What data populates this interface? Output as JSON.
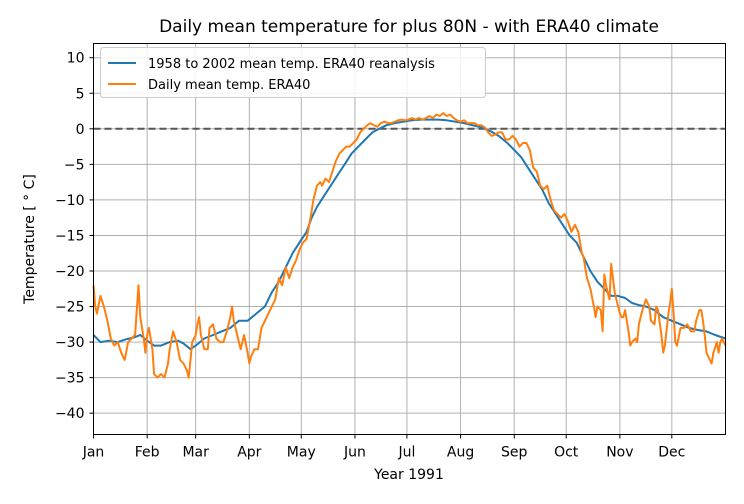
{
  "chart_data": {
    "type": "line",
    "title": "Daily mean temperature for plus 80N - with ERA40 climate",
    "xlabel": "Year 1991",
    "ylabel": "Temperature [$^\\circ$C]",
    "ylabel_display": "Temperature [ ° C]",
    "x_domain_days": [
      1,
      366
    ],
    "ylim": [
      -43,
      12
    ],
    "yticks": [
      10,
      5,
      0,
      -5,
      -10,
      -15,
      -20,
      -25,
      -30,
      -35,
      -40
    ],
    "xticks": [
      {
        "label": "Jan",
        "day": 1
      },
      {
        "label": "Feb",
        "day": 32
      },
      {
        "label": "Mar",
        "day": 60
      },
      {
        "label": "Apr",
        "day": 91
      },
      {
        "label": "May",
        "day": 121
      },
      {
        "label": "Jun",
        "day": 152
      },
      {
        "label": "Jul",
        "day": 182
      },
      {
        "label": "Aug",
        "day": 213
      },
      {
        "label": "Sep",
        "day": 244
      },
      {
        "label": "Oct",
        "day": 274
      },
      {
        "label": "Nov",
        "day": 305
      },
      {
        "label": "Dec",
        "day": 335
      }
    ],
    "grid": true,
    "legend_position": "upper-left",
    "reference_line": {
      "y": 0,
      "style": "dashed",
      "color": "#555555"
    },
    "series": [
      {
        "name": "1958 to 2002 mean temp. ERA40 reanalysis",
        "color": "#1f77b4",
        "points": [
          [
            1,
            -29.0
          ],
          [
            5,
            -30.0
          ],
          [
            10,
            -29.8
          ],
          [
            15,
            -30.0
          ],
          [
            20,
            -29.6
          ],
          [
            25,
            -29.3
          ],
          [
            28,
            -29.0
          ],
          [
            32,
            -29.8
          ],
          [
            36,
            -30.5
          ],
          [
            40,
            -30.5
          ],
          [
            45,
            -30.0
          ],
          [
            50,
            -29.8
          ],
          [
            53,
            -30.2
          ],
          [
            57,
            -31.0
          ],
          [
            60,
            -30.5
          ],
          [
            65,
            -29.5
          ],
          [
            70,
            -29.0
          ],
          [
            75,
            -28.5
          ],
          [
            80,
            -28.0
          ],
          [
            85,
            -27.0
          ],
          [
            90,
            -27.0
          ],
          [
            95,
            -26.0
          ],
          [
            100,
            -25.0
          ],
          [
            104,
            -23.0
          ],
          [
            108,
            -21.5
          ],
          [
            112,
            -19.5
          ],
          [
            116,
            -17.5
          ],
          [
            120,
            -16.0
          ],
          [
            124,
            -14.5
          ],
          [
            127,
            -12.5
          ],
          [
            130,
            -11.0
          ],
          [
            134,
            -9.5
          ],
          [
            138,
            -8.0
          ],
          [
            142,
            -6.5
          ],
          [
            146,
            -5.0
          ],
          [
            150,
            -3.5
          ],
          [
            154,
            -2.5
          ],
          [
            158,
            -1.5
          ],
          [
            162,
            -0.5
          ],
          [
            166,
            0.0
          ],
          [
            170,
            0.5
          ],
          [
            175,
            0.8
          ],
          [
            180,
            1.0
          ],
          [
            185,
            1.2
          ],
          [
            190,
            1.3
          ],
          [
            195,
            1.3
          ],
          [
            200,
            1.3
          ],
          [
            205,
            1.2
          ],
          [
            210,
            1.0
          ],
          [
            215,
            0.8
          ],
          [
            220,
            0.5
          ],
          [
            225,
            0.2
          ],
          [
            230,
            -0.3
          ],
          [
            235,
            -1.0
          ],
          [
            240,
            -2.0
          ],
          [
            244,
            -3.0
          ],
          [
            248,
            -4.0
          ],
          [
            252,
            -5.5
          ],
          [
            256,
            -7.0
          ],
          [
            260,
            -8.5
          ],
          [
            264,
            -10.5
          ],
          [
            268,
            -12.0
          ],
          [
            272,
            -13.5
          ],
          [
            276,
            -15.0
          ],
          [
            280,
            -16.0
          ],
          [
            284,
            -18.0
          ],
          [
            288,
            -20.0
          ],
          [
            292,
            -21.5
          ],
          [
            296,
            -22.5
          ],
          [
            300,
            -23.5
          ],
          [
            304,
            -23.5
          ],
          [
            308,
            -23.8
          ],
          [
            312,
            -24.5
          ],
          [
            316,
            -24.8
          ],
          [
            320,
            -25.0
          ],
          [
            325,
            -25.5
          ],
          [
            330,
            -26.5
          ],
          [
            335,
            -27.0
          ],
          [
            340,
            -27.5
          ],
          [
            345,
            -28.0
          ],
          [
            350,
            -28.3
          ],
          [
            355,
            -28.5
          ],
          [
            360,
            -29.0
          ],
          [
            366,
            -29.5
          ]
        ]
      },
      {
        "name": "Daily mean temp. ERA40",
        "color": "#ff7f0e",
        "points": [
          [
            1,
            -22.0
          ],
          [
            2,
            -25.0
          ],
          [
            3,
            -26.0
          ],
          [
            5,
            -23.5
          ],
          [
            7,
            -25.0
          ],
          [
            9,
            -27.0
          ],
          [
            11,
            -29.5
          ],
          [
            13,
            -30.5
          ],
          [
            15,
            -30.0
          ],
          [
            17,
            -31.5
          ],
          [
            19,
            -32.5
          ],
          [
            21,
            -30.0
          ],
          [
            23,
            -29.5
          ],
          [
            25,
            -29.0
          ],
          [
            27,
            -22.0
          ],
          [
            28,
            -26.5
          ],
          [
            30,
            -29.5
          ],
          [
            31,
            -31.5
          ],
          [
            32,
            -29.0
          ],
          [
            33,
            -28.0
          ],
          [
            35,
            -31.0
          ],
          [
            36,
            -34.5
          ],
          [
            38,
            -35.0
          ],
          [
            40,
            -34.5
          ],
          [
            42,
            -35.0
          ],
          [
            44,
            -33.0
          ],
          [
            45,
            -31.0
          ],
          [
            47,
            -28.5
          ],
          [
            49,
            -30.0
          ],
          [
            51,
            -32.5
          ],
          [
            53,
            -33.0
          ],
          [
            55,
            -34.0
          ],
          [
            56,
            -35.0
          ],
          [
            57,
            -32.5
          ],
          [
            58,
            -30.0
          ],
          [
            60,
            -29.0
          ],
          [
            61,
            -27.5
          ],
          [
            62,
            -26.5
          ],
          [
            63,
            -29.0
          ],
          [
            65,
            -31.0
          ],
          [
            67,
            -31.0
          ],
          [
            68,
            -28.0
          ],
          [
            70,
            -27.5
          ],
          [
            72,
            -29.5
          ],
          [
            74,
            -30.0
          ],
          [
            76,
            -30.0
          ],
          [
            78,
            -28.5
          ],
          [
            79,
            -27.5
          ],
          [
            80,
            -26.5
          ],
          [
            81,
            -25.0
          ],
          [
            82,
            -27.0
          ],
          [
            84,
            -29.0
          ],
          [
            86,
            -31.0
          ],
          [
            88,
            -29.0
          ],
          [
            90,
            -31.5
          ],
          [
            91,
            -33.0
          ],
          [
            92,
            -32.0
          ],
          [
            94,
            -31.0
          ],
          [
            96,
            -31.0
          ],
          [
            98,
            -28.0
          ],
          [
            100,
            -27.0
          ],
          [
            102,
            -26.0
          ],
          [
            104,
            -25.0
          ],
          [
            106,
            -24.0
          ],
          [
            108,
            -21.0
          ],
          [
            110,
            -22.0
          ],
          [
            112,
            -19.5
          ],
          [
            114,
            -21.0
          ],
          [
            116,
            -19.5
          ],
          [
            118,
            -18.5
          ],
          [
            120,
            -17.0
          ],
          [
            122,
            -16.0
          ],
          [
            124,
            -15.5
          ],
          [
            126,
            -13.0
          ],
          [
            127,
            -11.5
          ],
          [
            128,
            -10.0
          ],
          [
            130,
            -8.0
          ],
          [
            132,
            -7.5
          ],
          [
            133,
            -8.0
          ],
          [
            135,
            -7.0
          ],
          [
            137,
            -7.5
          ],
          [
            139,
            -6.0
          ],
          [
            141,
            -4.5
          ],
          [
            143,
            -3.5
          ],
          [
            145,
            -3.0
          ],
          [
            147,
            -2.5
          ],
          [
            149,
            -2.5
          ],
          [
            151,
            -2.0
          ],
          [
            153,
            -1.5
          ],
          [
            155,
            -0.5
          ],
          [
            157,
            0.0
          ],
          [
            159,
            0.5
          ],
          [
            161,
            0.8
          ],
          [
            163,
            0.5
          ],
          [
            165,
            0.3
          ],
          [
            167,
            0.8
          ],
          [
            169,
            1.0
          ],
          [
            171,
            0.8
          ],
          [
            173,
            0.8
          ],
          [
            175,
            1.0
          ],
          [
            177,
            1.2
          ],
          [
            179,
            1.3
          ],
          [
            181,
            1.2
          ],
          [
            183,
            1.3
          ],
          [
            185,
            1.5
          ],
          [
            187,
            1.3
          ],
          [
            189,
            1.5
          ],
          [
            191,
            1.3
          ],
          [
            193,
            1.5
          ],
          [
            195,
            1.8
          ],
          [
            197,
            1.5
          ],
          [
            199,
            2.0
          ],
          [
            201,
            1.8
          ],
          [
            203,
            2.2
          ],
          [
            205,
            1.8
          ],
          [
            207,
            2.0
          ],
          [
            209,
            1.5
          ],
          [
            211,
            1.2
          ],
          [
            213,
            1.0
          ],
          [
            215,
            1.2
          ],
          [
            217,
            0.8
          ],
          [
            219,
            0.8
          ],
          [
            221,
            0.8
          ],
          [
            223,
            0.5
          ],
          [
            225,
            0.5
          ],
          [
            227,
            0.2
          ],
          [
            229,
            -0.5
          ],
          [
            231,
            -1.0
          ],
          [
            233,
            -0.8
          ],
          [
            235,
            -0.5
          ],
          [
            237,
            -0.5
          ],
          [
            239,
            -1.5
          ],
          [
            241,
            -1.5
          ],
          [
            243,
            -1.0
          ],
          [
            245,
            -1.5
          ],
          [
            247,
            -2.5
          ],
          [
            249,
            -2.0
          ],
          [
            251,
            -2.0
          ],
          [
            253,
            -3.0
          ],
          [
            255,
            -5.5
          ],
          [
            257,
            -6.0
          ],
          [
            259,
            -8.0
          ],
          [
            261,
            -8.5
          ],
          [
            263,
            -8.0
          ],
          [
            265,
            -10.0
          ],
          [
            267,
            -11.5
          ],
          [
            269,
            -12.0
          ],
          [
            271,
            -12.5
          ],
          [
            273,
            -12.0
          ],
          [
            275,
            -13.0
          ],
          [
            277,
            -14.5
          ],
          [
            279,
            -13.5
          ],
          [
            281,
            -14.5
          ],
          [
            283,
            -17.5
          ],
          [
            284,
            -18.0
          ],
          [
            286,
            -21.0
          ],
          [
            288,
            -22.5
          ],
          [
            290,
            -25.0
          ],
          [
            291,
            -26.5
          ],
          [
            292,
            -25.0
          ],
          [
            294,
            -25.5
          ],
          [
            295,
            -28.5
          ],
          [
            296,
            -20.5
          ],
          [
            297,
            -22.0
          ],
          [
            299,
            -24.0
          ],
          [
            300,
            -19.0
          ],
          [
            302,
            -23.0
          ],
          [
            303,
            -24.0
          ],
          [
            305,
            -26.0
          ],
          [
            306,
            -26.5
          ],
          [
            307,
            -26.5
          ],
          [
            308,
            -25.5
          ],
          [
            309,
            -27.0
          ],
          [
            310,
            -28.5
          ],
          [
            311,
            -30.5
          ],
          [
            312,
            -30.0
          ],
          [
            314,
            -29.5
          ],
          [
            315,
            -30.0
          ],
          [
            316,
            -27.5
          ],
          [
            318,
            -25.5
          ],
          [
            320,
            -24.0
          ],
          [
            322,
            -25.0
          ],
          [
            323,
            -27.0
          ],
          [
            325,
            -27.5
          ],
          [
            326,
            -25.0
          ],
          [
            327,
            -25.5
          ],
          [
            329,
            -29.0
          ],
          [
            330,
            -31.5
          ],
          [
            331,
            -30.5
          ],
          [
            333,
            -26.0
          ],
          [
            334,
            -24.5
          ],
          [
            335,
            -22.5
          ],
          [
            336,
            -26.0
          ],
          [
            337,
            -30.0
          ],
          [
            338,
            -30.5
          ],
          [
            340,
            -28.0
          ],
          [
            342,
            -28.0
          ],
          [
            344,
            -27.5
          ],
          [
            346,
            -28.5
          ],
          [
            348,
            -28.5
          ],
          [
            349,
            -27.0
          ],
          [
            351,
            -25.5
          ],
          [
            352,
            -25.5
          ],
          [
            353,
            -27.0
          ],
          [
            354,
            -29.0
          ],
          [
            355,
            -31.5
          ],
          [
            357,
            -32.5
          ],
          [
            358,
            -33.0
          ],
          [
            359,
            -31.5
          ],
          [
            361,
            -30.0
          ],
          [
            362,
            -31.5
          ],
          [
            363,
            -30.0
          ],
          [
            364,
            -29.5
          ],
          [
            365,
            -30.0
          ],
          [
            366,
            -30.5
          ]
        ]
      }
    ]
  }
}
